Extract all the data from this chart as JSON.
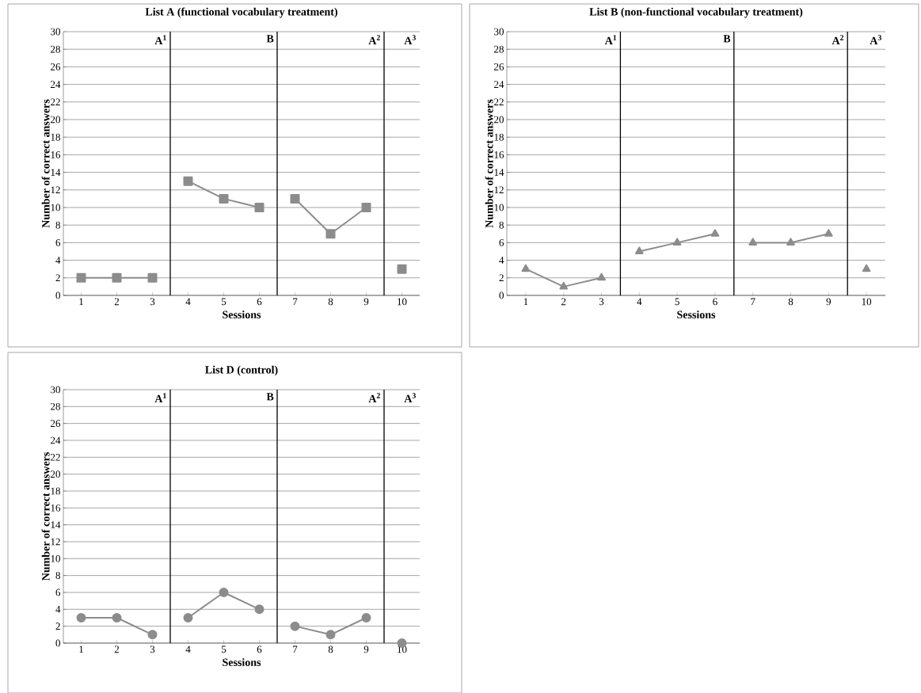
{
  "chart_data": [
    {
      "type": "line",
      "title": "List A (functional vocabulary treatment)",
      "xlabel": "Sessions",
      "ylabel": "Number of correct answers",
      "xlim": [
        0.5,
        10.5
      ],
      "xticks": [
        1,
        2,
        3,
        4,
        5,
        6,
        7,
        8,
        9,
        10
      ],
      "ylim": [
        0,
        30
      ],
      "yticks": [
        0,
        2,
        4,
        6,
        8,
        10,
        12,
        14,
        16,
        18,
        20,
        22,
        24,
        26,
        28,
        30
      ],
      "grid": "y",
      "marker": "square",
      "line_style": "solid",
      "series": [
        {
          "color": "#8c8c8c",
          "x": [
            1,
            2,
            3
          ],
          "values": [
            2,
            2,
            2
          ]
        },
        {
          "color": "#8c8c8c",
          "x": [
            4,
            5,
            6
          ],
          "values": [
            13,
            11,
            10
          ]
        },
        {
          "color": "#8c8c8c",
          "x": [
            7,
            8,
            9
          ],
          "values": [
            11,
            7,
            10
          ]
        },
        {
          "color": "#8c8c8c",
          "x": [
            10
          ],
          "values": [
            3
          ]
        }
      ],
      "ref_lines": [
        {
          "axis": "x",
          "value": 3.5,
          "color": "#000000"
        },
        {
          "axis": "x",
          "value": 6.5,
          "color": "#000000"
        },
        {
          "axis": "x",
          "value": 9.5,
          "color": "#000000"
        }
      ],
      "annotations": [
        "A$^{1}$",
        "B",
        "A$^{2}$",
        "A$^{3}$"
      ]
    },
    {
      "type": "line",
      "title": "List B (non-functional vocabulary treatment)",
      "xlabel": "Sessions",
      "ylabel": "Number of correct answers",
      "xlim": [
        0.5,
        10.5
      ],
      "xticks": [
        1,
        2,
        3,
        4,
        5,
        6,
        7,
        8,
        9,
        10
      ],
      "ylim": [
        0,
        30
      ],
      "yticks": [
        0,
        2,
        4,
        6,
        8,
        10,
        12,
        14,
        16,
        18,
        20,
        22,
        24,
        26,
        28,
        30
      ],
      "grid": "y",
      "marker": "triangle",
      "line_style": "solid",
      "series": [
        {
          "color": "#8c8c8c",
          "x": [
            1,
            2,
            3
          ],
          "values": [
            3,
            1,
            2
          ]
        },
        {
          "color": "#8c8c8c",
          "x": [
            4,
            5,
            6
          ],
          "values": [
            5,
            6,
            7
          ]
        },
        {
          "color": "#8c8c8c",
          "x": [
            7,
            8,
            9
          ],
          "values": [
            6,
            6,
            7
          ]
        },
        {
          "color": "#8c8c8c",
          "x": [
            10
          ],
          "values": [
            3
          ]
        }
      ],
      "ref_lines": [
        {
          "axis": "x",
          "value": 3.5,
          "color": "#000000"
        },
        {
          "axis": "x",
          "value": 6.5,
          "color": "#000000"
        },
        {
          "axis": "x",
          "value": 9.5,
          "color": "#000000"
        }
      ],
      "annotations": [
        "A$^{1}$",
        "B",
        "A$^{2}$",
        "A$^{3}$"
      ]
    },
    {
      "type": "line",
      "title": "List D (control)",
      "xlabel": "Sessions",
      "ylabel": "Number of correct answers",
      "xlim": [
        0.5,
        10.5
      ],
      "xticks": [
        1,
        2,
        3,
        4,
        5,
        6,
        7,
        8,
        9,
        10
      ],
      "ylim": [
        0,
        30
      ],
      "yticks": [
        0,
        2,
        4,
        6,
        8,
        10,
        12,
        14,
        16,
        18,
        20,
        22,
        24,
        26,
        28,
        30
      ],
      "grid": "y",
      "marker": "circle",
      "line_style": "solid",
      "series": [
        {
          "color": "#8c8c8c",
          "x": [
            1,
            2,
            3
          ],
          "values": [
            3,
            3,
            1
          ]
        },
        {
          "color": "#8c8c8c",
          "x": [
            4,
            5,
            6
          ],
          "values": [
            3,
            6,
            4
          ]
        },
        {
          "color": "#8c8c8c",
          "x": [
            7,
            8,
            9
          ],
          "values": [
            2,
            1,
            3
          ]
        },
        {
          "color": "#8c8c8c",
          "x": [
            10
          ],
          "values": [
            0
          ]
        }
      ],
      "ref_lines": [
        {
          "axis": "x",
          "value": 3.5,
          "color": "#000000"
        },
        {
          "axis": "x",
          "value": 6.5,
          "color": "#000000"
        },
        {
          "axis": "x",
          "value": 9.5,
          "color": "#000000"
        }
      ],
      "annotations": [
        "A$^{1}$",
        "B",
        "A$^{2}$",
        "A$^{3}$"
      ]
    }
  ]
}
